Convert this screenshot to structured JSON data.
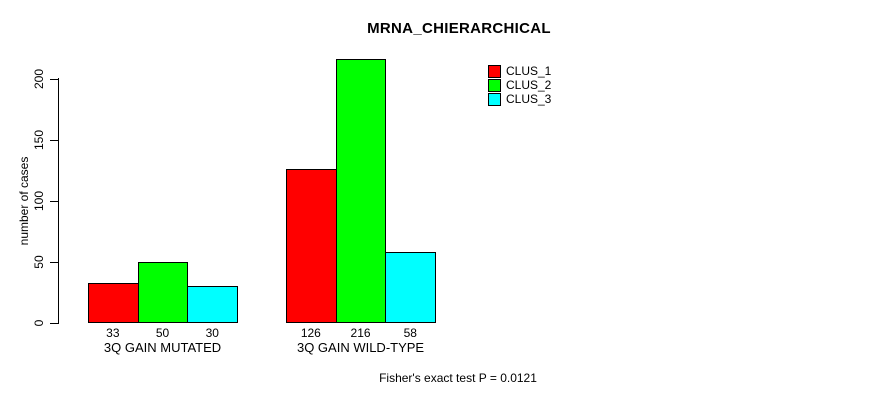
{
  "title": "MRNA_CHIERARCHICAL",
  "y_axis": {
    "label": "number of cases",
    "ticks": [
      "0",
      "50",
      "100",
      "150",
      "200"
    ]
  },
  "footer": "Fisher's exact test P = 0.0121",
  "legend": {
    "items": [
      {
        "label": "CLUS_1",
        "color": "#ff0000"
      },
      {
        "label": "CLUS_2",
        "color": "#00ff00"
      },
      {
        "label": "CLUS_3",
        "color": "#00ffff"
      }
    ]
  },
  "chart_data": {
    "type": "bar",
    "title": "MRNA_CHIERARCHICAL",
    "categories": [
      "3Q GAIN MUTATED",
      "3Q GAIN WILD-TYPE"
    ],
    "series": [
      {
        "name": "CLUS_1",
        "color": "#ff0000",
        "values": [
          33,
          126
        ]
      },
      {
        "name": "CLUS_2",
        "color": "#00ff00",
        "values": [
          50,
          216
        ]
      },
      {
        "name": "CLUS_3",
        "color": "#00ffff",
        "values": [
          30,
          58
        ]
      }
    ],
    "bar_value_labels": [
      [
        "33",
        "50",
        "30"
      ],
      [
        "126",
        "216",
        "58"
      ]
    ],
    "xlabel": "",
    "ylabel": "number of cases",
    "ylim": [
      0,
      220
    ],
    "yticks": [
      0,
      50,
      100,
      150,
      200
    ],
    "grid": false,
    "legend_position": "top-right",
    "bar_border_color": "#000000",
    "annotation": "Fisher's exact test P = 0.0121"
  }
}
